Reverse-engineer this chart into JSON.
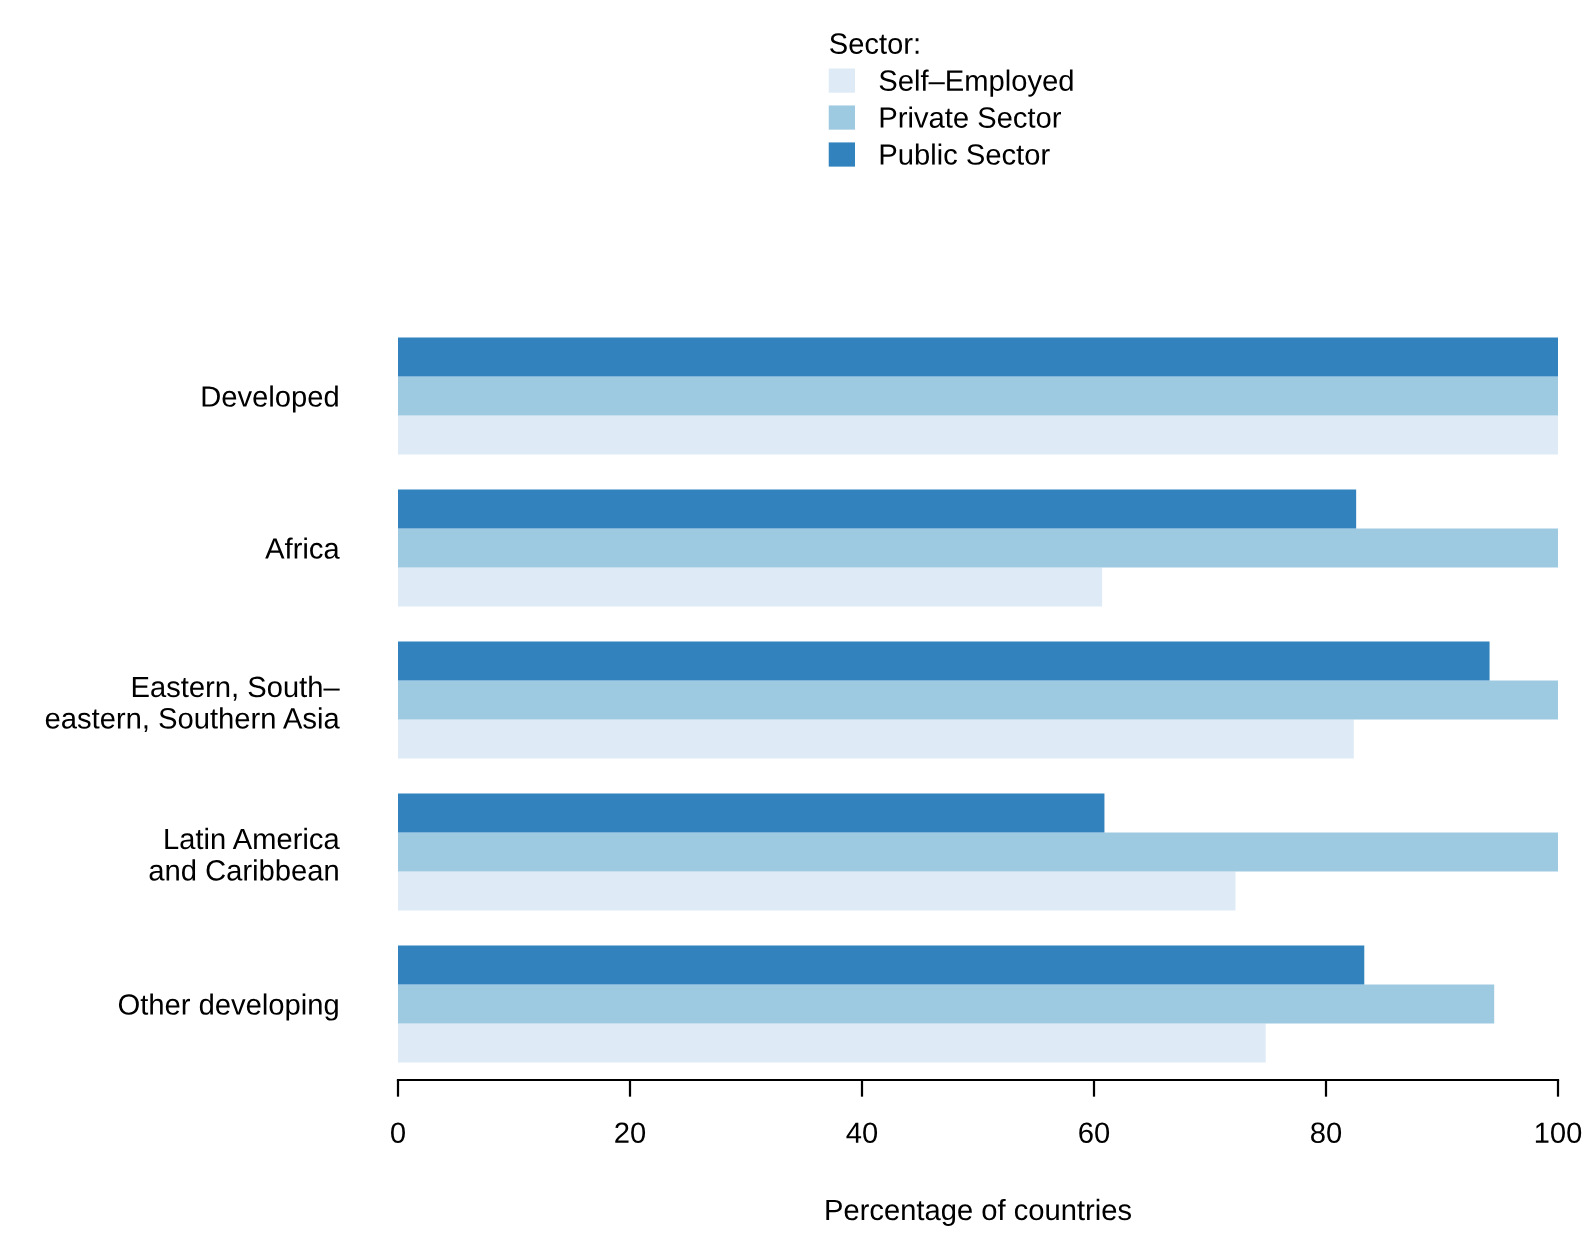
{
  "chart_data": {
    "type": "bar",
    "orientation": "horizontal",
    "xlabel": "Percentage of countries",
    "legend_title": "Sector:",
    "legend": "top",
    "categories": [
      "Developed",
      "Africa",
      "Eastern, South–\neastern, Southern Asia",
      "Latin America\nand Caribbean",
      "Other developing"
    ],
    "series": [
      {
        "name": "Self–Employed",
        "color": "#deebf7",
        "values": [
          100,
          60.7,
          82.4,
          72.2,
          74.8
        ]
      },
      {
        "name": "Private Sector",
        "color": "#9ecae1",
        "values": [
          100,
          100,
          100,
          100,
          94.5
        ]
      },
      {
        "name": "Public Sector",
        "color": "#3182bd",
        "values": [
          100,
          82.6,
          94.1,
          60.9,
          83.3
        ]
      }
    ],
    "xlim": [
      0,
      100
    ],
    "xticks": [
      0,
      20,
      40,
      60,
      80,
      100
    ],
    "grid": false
  }
}
